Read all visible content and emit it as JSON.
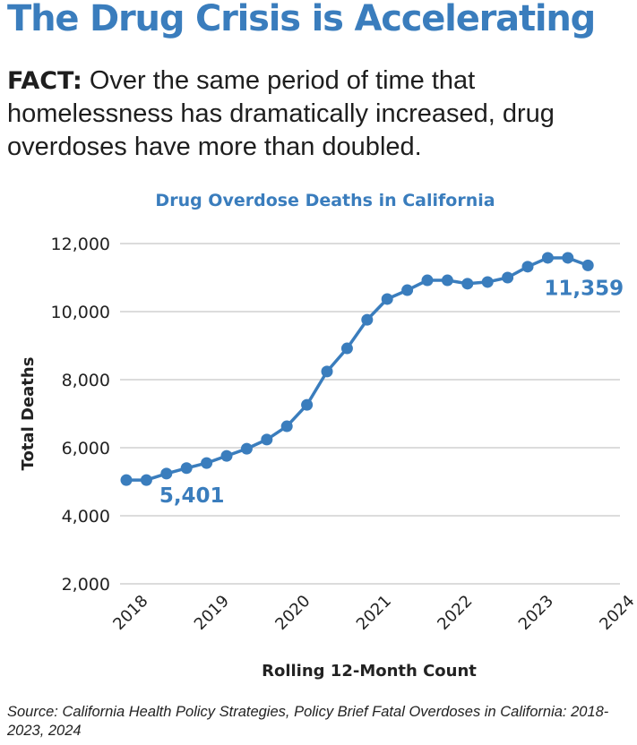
{
  "header": {
    "title": "The Drug Crisis is Accelerating",
    "fact_label": "FACT:",
    "fact_text": " Over the same period of time that homelessness has dramatically increased, drug overdoses have more than doubled."
  },
  "footer": {
    "source": "Source: California Health Policy Strategies, Policy Brief Fatal Overdoses in California: 2018-2023, 2024"
  },
  "colors": {
    "accent": "#3a7dbd",
    "text": "#1e1e1e",
    "grid": "#d0d0d0"
  },
  "chart_data": {
    "type": "line",
    "title": "Drug Overdose Deaths in California",
    "xlabel": "Rolling 12-Month Count",
    "ylabel": "Total Deaths",
    "ylim": [
      2000,
      12000
    ],
    "yticks": [
      12000,
      10000,
      8000,
      6000,
      4000,
      2000
    ],
    "ytick_labels": [
      "12,000",
      "10,000",
      "8,000",
      "6,000",
      "4,000",
      "2,000"
    ],
    "xtick_labels": [
      "2018",
      "2019",
      "2020",
      "2021",
      "2022",
      "2023",
      "2024"
    ],
    "grid": true,
    "legend": "none",
    "series": [
      {
        "name": "Drug Overdose Deaths",
        "values": [
          5050,
          5050,
          5240,
          5401,
          5550,
          5760,
          5970,
          6240,
          6630,
          7260,
          8240,
          8920,
          9760,
          10370,
          10630,
          10920,
          10920,
          10820,
          10870,
          11000,
          11320,
          11580,
          11580,
          11359
        ]
      }
    ],
    "annotations": [
      {
        "index": 3,
        "text": "5,401"
      },
      {
        "index": 23,
        "text": "11,359"
      }
    ]
  }
}
